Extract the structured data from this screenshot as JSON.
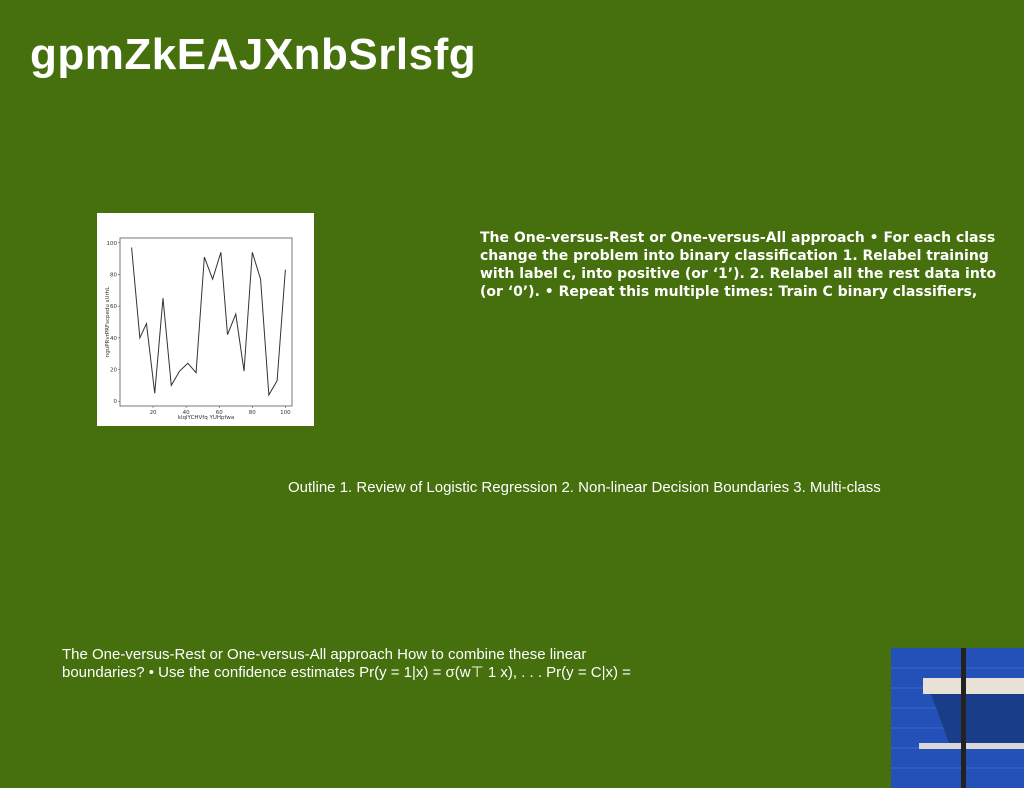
{
  "title": "gpmZkEAJXnbSrlsfg",
  "right_text": "The One-versus-Rest or One-versus-All approach • For each class change the problem into binary classification 1. Relabel training with label c, into positive (or ‘1’). 2. Relabel all the rest data into (or ‘0’). • Repeat this multiple times: Train C binary classifiers,",
  "outline_text": "Outline 1. Review of Logistic Regression 2. Non-linear Decision Boundaries 3. Multi-class",
  "bottom_text": "The One-versus-Rest or One-versus-All approach How to combine these linear boundaries? • Use the confidence estimates Pr(y = 1|x) = σ(w⊤ 1 x), . . . Pr(y = C|x) =",
  "chart_data": {
    "type": "line",
    "x_label": "klqlYCHVfq YUHpfwa",
    "y_label": "nguPRvrPRFscpedu sUrhL",
    "x": [
      7,
      12,
      16,
      21,
      26,
      31,
      36,
      41,
      46,
      51,
      56,
      61,
      65,
      70,
      75,
      80,
      85,
      90,
      95,
      100
    ],
    "series": [
      {
        "color": "#333333",
        "values": [
          97,
          40,
          49,
          5,
          65,
          10,
          19,
          24,
          18,
          91,
          77,
          94,
          42,
          55,
          19,
          94,
          77,
          4,
          13,
          83
        ]
      }
    ],
    "xlim": [
      0,
      104
    ],
    "ylim": [
      -3,
      103
    ],
    "xticks": [
      20,
      40,
      60,
      80,
      100
    ],
    "yticks": [
      0,
      20,
      40,
      60,
      80,
      100
    ]
  }
}
